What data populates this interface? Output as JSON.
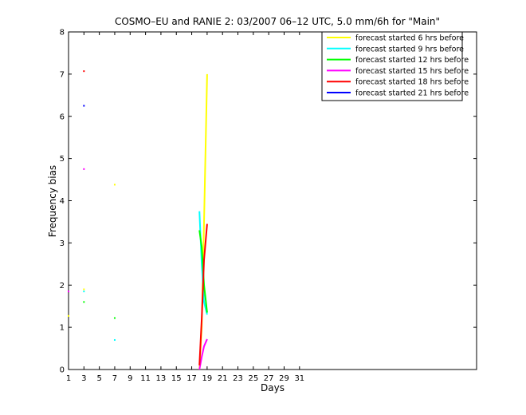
{
  "chart_data": {
    "type": "line",
    "title": "COSMO–EU and RANIE 2: 03/2007 06–12 UTC, 5.0 mm/6h for \"Main\"",
    "xlabel": "Days",
    "ylabel": "Frequency bias",
    "xlim": [
      1,
      54
    ],
    "ylim": [
      0,
      8
    ],
    "xticks": [
      1,
      3,
      5,
      7,
      9,
      11,
      13,
      15,
      17,
      19,
      21,
      23,
      25,
      27,
      29,
      31
    ],
    "yticks": [
      0,
      1,
      2,
      3,
      4,
      5,
      6,
      7,
      8
    ],
    "grid": false,
    "legend_position": "top-right",
    "series": [
      {
        "name": "forecast started 6 hrs before",
        "color": "#ffff00",
        "points": [
          [
            1,
            1.27
          ],
          [
            3,
            1.9
          ],
          [
            7,
            4.38
          ],
          [
            18,
            0.0
          ],
          [
            18.3,
            1.0
          ],
          [
            18.6,
            3.5
          ],
          [
            19.0,
            7.0
          ]
        ]
      },
      {
        "name": "forecast started 9 hrs before",
        "color": "#00ffff",
        "points": [
          [
            3,
            1.85
          ],
          [
            7,
            0.7
          ],
          [
            18,
            3.75
          ],
          [
            18.3,
            2.5
          ],
          [
            18.6,
            1.6
          ],
          [
            19.0,
            1.3
          ]
        ]
      },
      {
        "name": "forecast started 12 hrs before",
        "color": "#00ff00",
        "points": [
          [
            3,
            1.6
          ],
          [
            7,
            1.22
          ],
          [
            18,
            3.3
          ],
          [
            18.3,
            2.9
          ],
          [
            18.6,
            2.0
          ],
          [
            19.0,
            1.35
          ]
        ]
      },
      {
        "name": "forecast started 15 hrs before",
        "color": "#ff00ff",
        "points": [
          [
            1,
            1.85
          ],
          [
            3,
            4.75
          ],
          [
            18,
            0.0
          ],
          [
            18.3,
            0.3
          ],
          [
            18.6,
            0.55
          ],
          [
            19.0,
            0.72
          ]
        ]
      },
      {
        "name": "forecast started 18 hrs before",
        "color": "#ff0000",
        "points": [
          [
            3,
            7.07
          ],
          [
            18,
            0.1
          ],
          [
            18.3,
            1.2
          ],
          [
            18.6,
            2.6
          ],
          [
            19.0,
            3.45
          ]
        ]
      },
      {
        "name": "forecast started 21 hrs before",
        "color": "#0000ff",
        "points": [
          [
            3,
            6.25
          ]
        ]
      }
    ]
  }
}
